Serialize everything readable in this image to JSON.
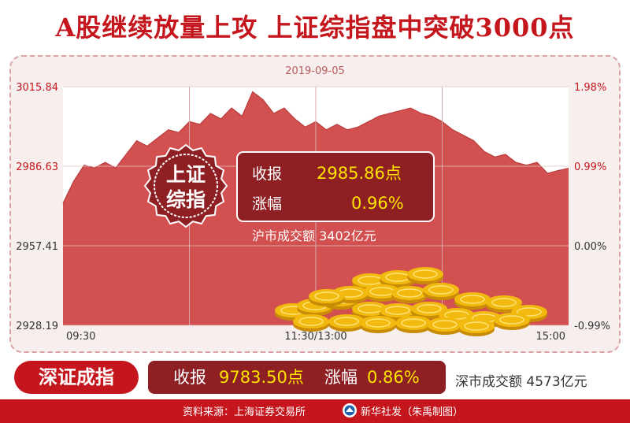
{
  "headline": "A股继续放量上攻  上证综指盘中突破3000点",
  "chart_data": {
    "type": "area",
    "title": "2019-09-05",
    "x_tick_labels": [
      "09:30",
      "11:30/13:00",
      "15:00"
    ],
    "y_left_ticks": [
      "3015.84",
      "2986.63",
      "2957.41",
      "2928.19"
    ],
    "y_right_ticks": [
      "1.98%",
      "0.99%",
      "0.00%",
      "-0.99%"
    ],
    "ylim": [
      2928.19,
      3015.84
    ],
    "reference_close": 2957.41,
    "x": [
      0,
      5,
      10,
      15,
      20,
      25,
      30,
      35,
      40,
      45,
      50,
      55,
      60,
      65,
      70,
      75,
      80,
      85,
      90,
      95,
      100,
      105,
      110,
      115,
      120,
      125,
      130,
      135,
      140,
      145,
      150,
      155,
      160,
      165,
      170,
      175,
      180,
      185,
      190,
      195,
      200,
      205,
      210,
      215,
      220,
      225,
      230,
      235,
      240
    ],
    "values": [
      2973,
      2981,
      2987,
      2986,
      2988,
      2986,
      2991,
      2996,
      2994,
      2997,
      3000,
      2999,
      3003,
      3002,
      3006,
      3004,
      3008,
      3005,
      3014,
      3011,
      3006,
      3008,
      3004,
      3001,
      3003,
      3000,
      3002,
      3000,
      3001,
      3003,
      3005,
      3006,
      3007,
      3008,
      3006,
      3005,
      3003,
      3000,
      2998,
      2996,
      2992,
      2990,
      2991,
      2988,
      2987,
      2988,
      2984,
      2985,
      2985.86
    ]
  },
  "shanghai": {
    "badge_line1": "上证",
    "badge_line2": "综指",
    "close_label": "收报",
    "close_value": "2985.86点",
    "change_label": "涨幅",
    "change_value": "0.96%",
    "turnover": "沪市成交额  3402亿元"
  },
  "shenzhen": {
    "name": "深证成指",
    "close_label": "收报",
    "close_value": "9783.50点",
    "change_label": "涨幅",
    "change_value": "0.86%",
    "turnover": "深市成交额  4573亿元"
  },
  "footer": {
    "source": "资料来源：上海证券交易所",
    "credit": "新华社发（朱禹制图）"
  },
  "colors": {
    "brand_red": "#c4161c",
    "area_fill": "#d2504f",
    "box_dark": "#8e2024",
    "highlight_yellow": "#ffe400",
    "coin_gold": "#f2b90e"
  }
}
